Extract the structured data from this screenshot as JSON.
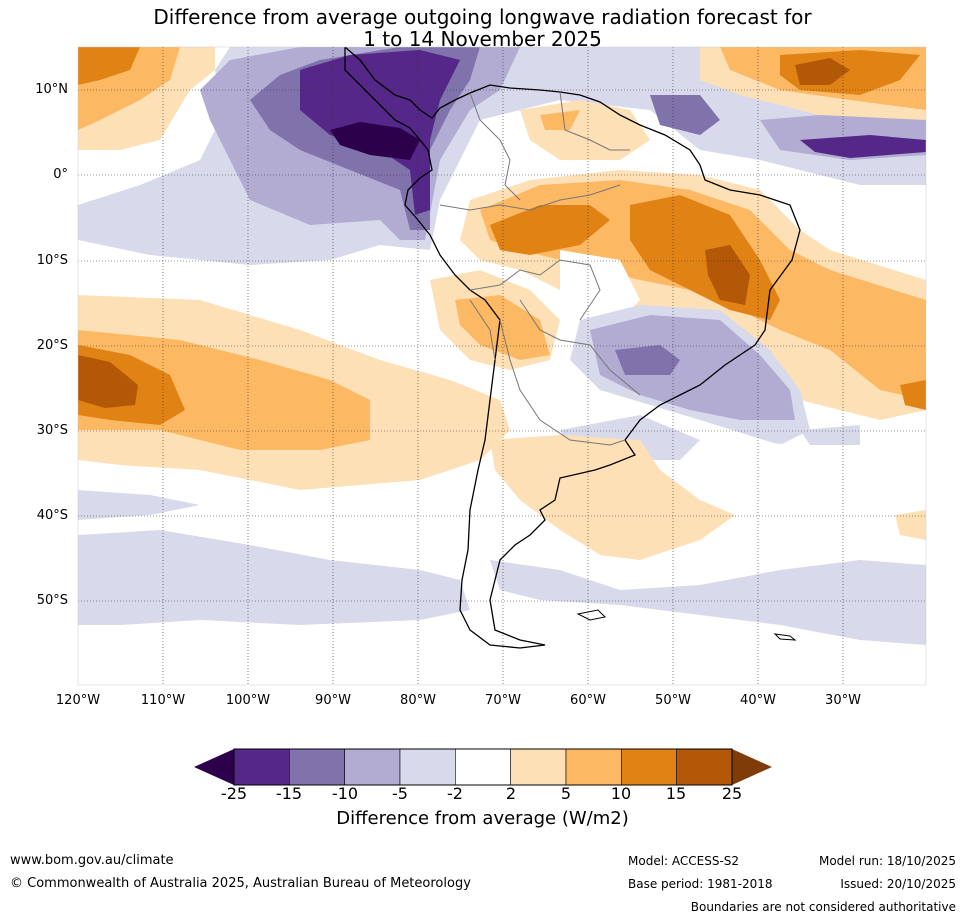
{
  "title": {
    "line1": "Difference from average outgoing longwave radiation forecast for",
    "line2": "1 to 14 November 2025"
  },
  "map": {
    "region": "South America",
    "lat_ticks": [
      "10°N",
      "0°",
      "10°S",
      "20°S",
      "30°S",
      "40°S",
      "50°S"
    ],
    "lon_ticks": [
      "120°W",
      "110°W",
      "100°W",
      "90°W",
      "80°W",
      "70°W",
      "60°W",
      "50°W",
      "40°W",
      "30°W"
    ]
  },
  "colorbar": {
    "labels": [
      "-25",
      "-15",
      "-10",
      "-5",
      "-2",
      "2",
      "5",
      "10",
      "15",
      "25"
    ],
    "colors": [
      "#2d004b",
      "#542788",
      "#8073ac",
      "#b2abd2",
      "#d8daeb",
      "#ffffff",
      "#fee0b6",
      "#fdb863",
      "#e08214",
      "#b35806",
      "#7f3b08"
    ],
    "title": "Difference from average (W/m2)"
  },
  "footer": {
    "url": "www.bom.gov.au/climate",
    "copyright": "© Commonwealth of Australia 2025, Australian Bureau of Meteorology",
    "model": "Model: ACCESS-S2",
    "base_period": "Base period: 1981-2018",
    "model_run": "Model run: 18/10/2025",
    "issued": "Issued: 20/10/2025",
    "disclaimer": "Boundaries are not considered authoritative"
  }
}
